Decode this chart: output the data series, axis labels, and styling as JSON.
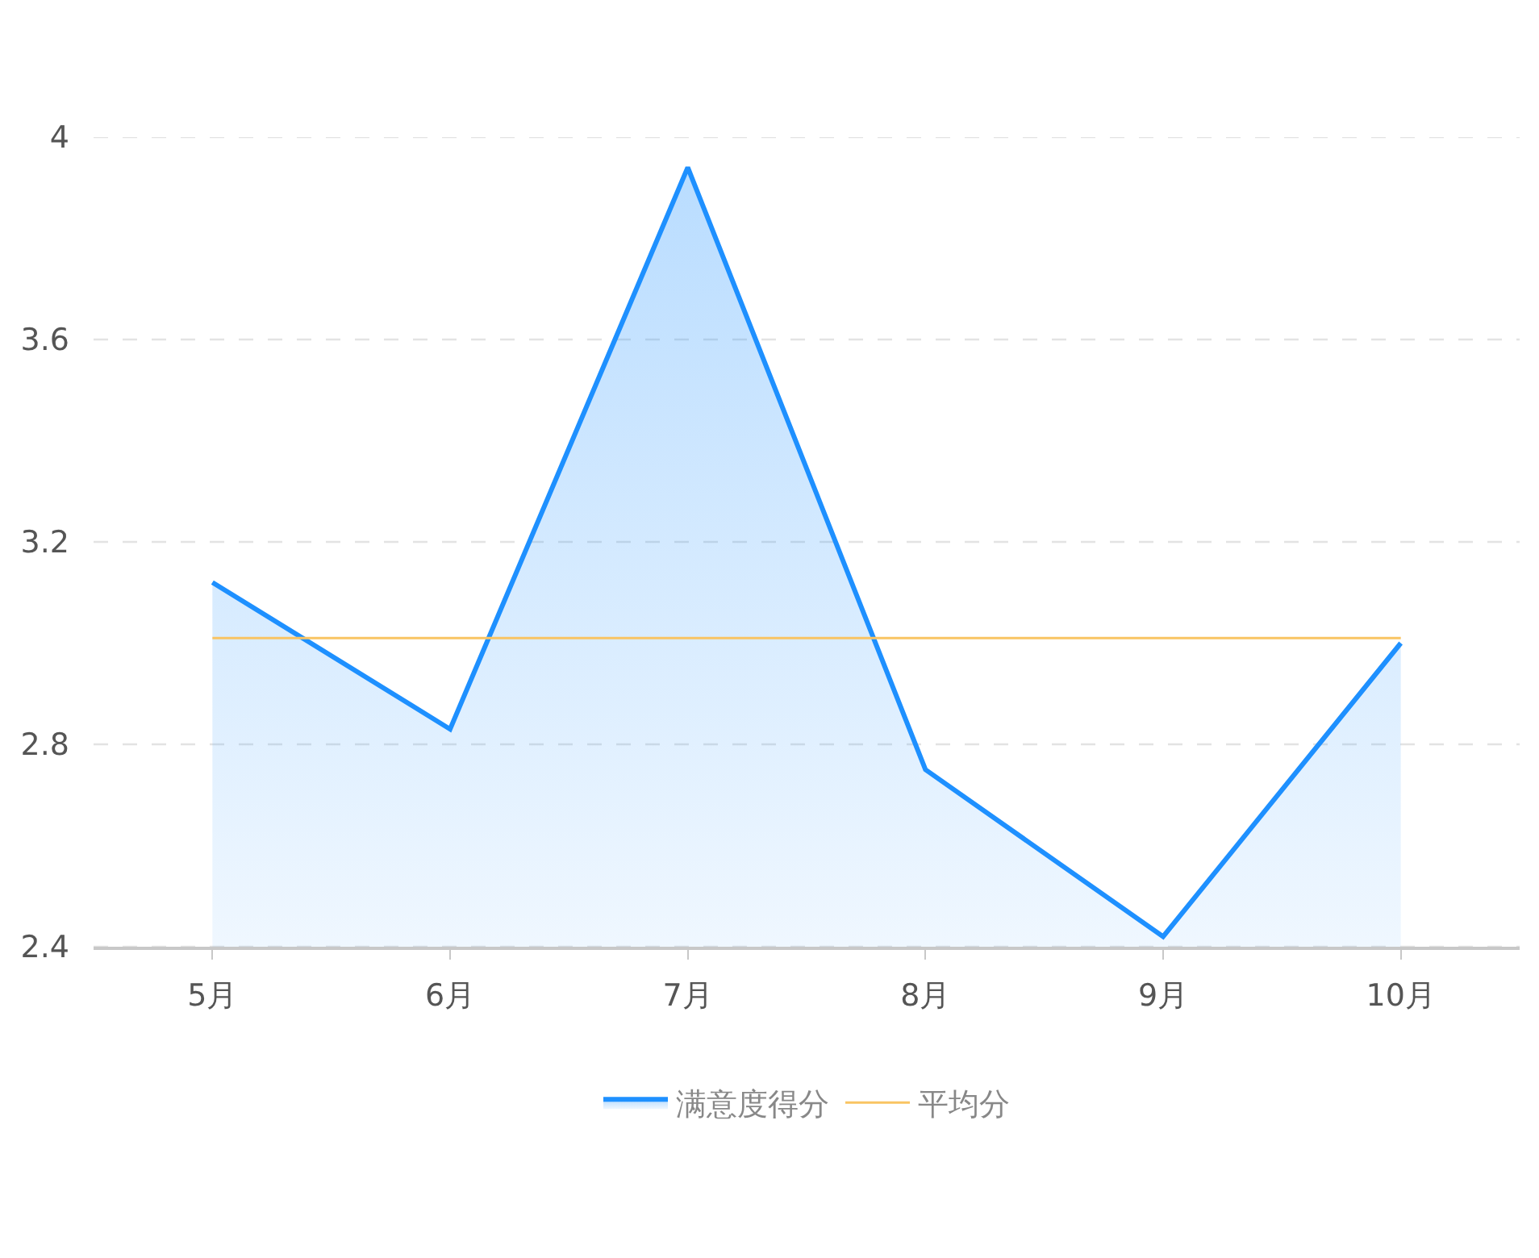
{
  "chart_data": {
    "type": "area",
    "categories": [
      "5月",
      "6月",
      "7月",
      "8月",
      "9月",
      "10月"
    ],
    "series": [
      {
        "name": "满意度得分",
        "color": "#1e90ff",
        "values": [
          3.12,
          2.83,
          3.94,
          2.75,
          2.42,
          3.0
        ]
      },
      {
        "name": "平均分",
        "type": "line",
        "color": "#f9c463",
        "values": [
          3.01,
          3.01,
          3.01,
          3.01,
          3.01,
          3.01
        ]
      }
    ],
    "ylim": [
      2.4,
      4
    ],
    "yticks": [
      2.4,
      2.8,
      3.2,
      3.6,
      4
    ],
    "grid": "y",
    "legend": "bottom",
    "marker": "none",
    "line_style": "solid"
  }
}
